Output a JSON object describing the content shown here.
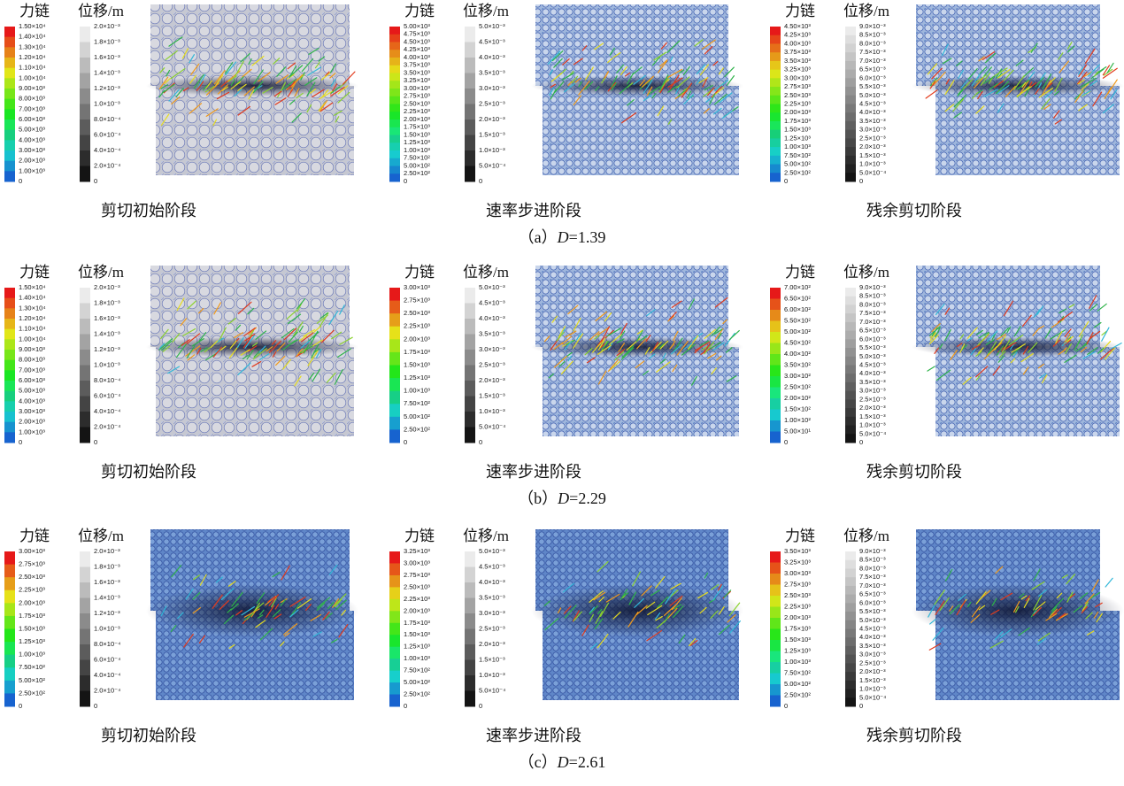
{
  "rows": [
    {
      "caption": {
        "label": "（a）",
        "symbol": "D",
        "value": "=1.39"
      },
      "panels": [
        {
          "stage": "剪切初始阶段",
          "force_title": "力链",
          "disp_title": "位移/m",
          "force_ticks": [
            "1.50×10⁴",
            "1.40×10⁴",
            "1.30×10⁴",
            "1.20×10⁴",
            "1.10×10⁴",
            "1.00×10⁴",
            "9.00×10³",
            "8.00×10³",
            "7.00×10³",
            "6.00×10³",
            "5.00×10³",
            "4.00×10³",
            "3.00×10³",
            "2.00×10³",
            "1.00×10³",
            "0"
          ],
          "disp_ticks": [
            "2.0×10⁻³",
            "1.8×10⁻³",
            "1.6×10⁻³",
            "1.4×10⁻³",
            "1.2×10⁻³",
            "1.0×10⁻³",
            "8.0×10⁻⁴",
            "6.0×10⁻⁴",
            "4.0×10⁻⁴",
            "2.0×10⁻⁴",
            "0"
          ]
        },
        {
          "stage": "速率步进阶段",
          "force_title": "力链",
          "disp_title": "位移/m",
          "force_ticks": [
            "5.00×10³",
            "4.75×10³",
            "4.50×10³",
            "4.25×10³",
            "4.00×10³",
            "3.75×10³",
            "3.50×10³",
            "3.25×10³",
            "3.00×10³",
            "2.75×10³",
            "2.50×10³",
            "2.25×10³",
            "2.00×10³",
            "1.75×10³",
            "1.50×10³",
            "1.25×10³",
            "1.00×10³",
            "7.50×10²",
            "5.00×10²",
            "2.50×10²",
            "0"
          ],
          "disp_ticks": [
            "5.0×10⁻³",
            "4.5×10⁻³",
            "4.0×10⁻³",
            "3.5×10⁻³",
            "3.0×10⁻³",
            "2.5×10⁻³",
            "2.0×10⁻³",
            "1.5×10⁻³",
            "1.0×10⁻³",
            "5.0×10⁻⁴",
            "0"
          ]
        },
        {
          "stage": "残余剪切阶段",
          "force_title": "力链",
          "disp_title": "位移/m",
          "force_ticks": [
            "4.50×10³",
            "4.25×10³",
            "4.00×10³",
            "3.75×10³",
            "3.50×10³",
            "3.25×10³",
            "3.00×10³",
            "2.75×10³",
            "2.50×10³",
            "2.25×10³",
            "2.00×10³",
            "1.75×10³",
            "1.50×10³",
            "1.25×10³",
            "1.00×10³",
            "7.50×10²",
            "5.00×10²",
            "2.50×10²",
            "0"
          ],
          "disp_ticks": [
            "9.0×10⁻³",
            "8.5×10⁻³",
            "8.0×10⁻³",
            "7.5×10⁻³",
            "7.0×10⁻³",
            "6.5×10⁻³",
            "6.0×10⁻³",
            "5.5×10⁻³",
            "5.0×10⁻³",
            "4.5×10⁻³",
            "4.0×10⁻³",
            "3.5×10⁻³",
            "3.0×10⁻³",
            "2.5×10⁻³",
            "2.0×10⁻³",
            "1.5×10⁻³",
            "1.0×10⁻³",
            "5.0×10⁻⁴",
            "0"
          ]
        }
      ]
    },
    {
      "caption": {
        "label": "（b）",
        "symbol": "D",
        "value": "=2.29"
      },
      "panels": [
        {
          "stage": "剪切初始阶段",
          "force_title": "力链",
          "disp_title": "位移/m",
          "force_ticks": [
            "1.50×10⁴",
            "1.40×10⁴",
            "1.30×10⁴",
            "1.20×10⁴",
            "1.10×10⁴",
            "1.00×10⁴",
            "9.00×10³",
            "8.00×10³",
            "7.00×10³",
            "6.00×10³",
            "5.00×10³",
            "4.00×10³",
            "3.00×10³",
            "2.00×10³",
            "1.00×10³",
            "0"
          ],
          "disp_ticks": [
            "2.0×10⁻³",
            "1.8×10⁻³",
            "1.6×10⁻³",
            "1.4×10⁻³",
            "1.2×10⁻³",
            "1.0×10⁻³",
            "8.0×10⁻⁴",
            "6.0×10⁻⁴",
            "4.0×10⁻⁴",
            "2.0×10⁻⁴",
            "0"
          ]
        },
        {
          "stage": "速率步进阶段",
          "force_title": "力链",
          "disp_title": "位移/m",
          "force_ticks": [
            "3.00×10³",
            "2.75×10³",
            "2.50×10³",
            "2.25×10³",
            "2.00×10³",
            "1.75×10³",
            "1.50×10³",
            "1.25×10³",
            "1.00×10³",
            "7.50×10²",
            "5.00×10²",
            "2.50×10²",
            "0"
          ],
          "disp_ticks": [
            "5.0×10⁻³",
            "4.5×10⁻³",
            "4.0×10⁻³",
            "3.5×10⁻³",
            "3.0×10⁻³",
            "2.5×10⁻³",
            "2.0×10⁻³",
            "1.5×10⁻³",
            "1.0×10⁻³",
            "5.0×10⁻⁴",
            "0"
          ]
        },
        {
          "stage": "残余剪切阶段",
          "force_title": "力链",
          "disp_title": "位移/m",
          "force_ticks": [
            "7.00×10²",
            "6.50×10²",
            "6.00×10²",
            "5.50×10²",
            "5.00×10²",
            "4.50×10²",
            "4.00×10²",
            "3.50×10²",
            "3.00×10²",
            "2.50×10²",
            "2.00×10²",
            "1.50×10²",
            "1.00×10²",
            "5.00×10¹",
            "0"
          ],
          "disp_ticks": [
            "9.0×10⁻³",
            "8.5×10⁻³",
            "8.0×10⁻³",
            "7.5×10⁻³",
            "7.0×10⁻³",
            "6.5×10⁻³",
            "6.0×10⁻³",
            "5.5×10⁻³",
            "5.0×10⁻³",
            "4.5×10⁻³",
            "4.0×10⁻³",
            "3.5×10⁻³",
            "3.0×10⁻³",
            "2.5×10⁻³",
            "2.0×10⁻³",
            "1.5×10⁻³",
            "1.0×10⁻³",
            "5.0×10⁻⁴",
            "0"
          ]
        }
      ]
    },
    {
      "caption": {
        "label": "（c）",
        "symbol": "D",
        "value": "=2.61"
      },
      "panels": [
        {
          "stage": "剪切初始阶段",
          "force_title": "力链",
          "disp_title": "位移/m",
          "force_ticks": [
            "3.00×10³",
            "2.75×10³",
            "2.50×10³",
            "2.25×10³",
            "2.00×10³",
            "1.75×10³",
            "1.50×10³",
            "1.25×10³",
            "1.00×10³",
            "7.50×10²",
            "5.00×10²",
            "2.50×10²",
            "0"
          ],
          "disp_ticks": [
            "2.0×10⁻³",
            "1.8×10⁻³",
            "1.6×10⁻³",
            "1.4×10⁻³",
            "1.2×10⁻³",
            "1.0×10⁻³",
            "8.0×10⁻⁴",
            "6.0×10⁻⁴",
            "4.0×10⁻⁴",
            "2.0×10⁻⁴",
            "0"
          ]
        },
        {
          "stage": "速率步进阶段",
          "force_title": "力链",
          "disp_title": "位移/m",
          "force_ticks": [
            "3.25×10³",
            "3.00×10³",
            "2.75×10³",
            "2.50×10³",
            "2.25×10³",
            "2.00×10³",
            "1.75×10³",
            "1.50×10³",
            "1.25×10³",
            "1.00×10³",
            "7.50×10²",
            "5.00×10²",
            "2.50×10²",
            "0"
          ],
          "disp_ticks": [
            "5.0×10⁻³",
            "4.5×10⁻³",
            "4.0×10⁻³",
            "3.5×10⁻³",
            "3.0×10⁻³",
            "2.5×10⁻³",
            "2.0×10⁻³",
            "1.5×10⁻³",
            "1.0×10⁻³",
            "5.0×10⁻⁴",
            "0"
          ]
        },
        {
          "stage": "残余剪切阶段",
          "force_title": "力链",
          "disp_title": "位移/m",
          "force_ticks": [
            "3.50×10³",
            "3.25×10³",
            "3.00×10³",
            "2.75×10³",
            "2.50×10³",
            "2.25×10³",
            "2.00×10³",
            "1.75×10³",
            "1.50×10³",
            "1.25×10³",
            "1.00×10³",
            "7.50×10²",
            "5.00×10²",
            "2.50×10²",
            "0"
          ],
          "disp_ticks": [
            "9.0×10⁻³",
            "8.5×10⁻³",
            "8.0×10⁻³",
            "7.5×10⁻³",
            "7.0×10⁻³",
            "6.5×10⁻³",
            "6.0×10⁻³",
            "5.5×10⁻³",
            "5.0×10⁻³",
            "4.5×10⁻³",
            "4.0×10⁻³",
            "3.5×10⁻³",
            "3.0×10⁻³",
            "2.5×10⁻³",
            "2.0×10⁻³",
            "1.5×10⁻³",
            "1.0×10⁻³",
            "5.0×10⁻⁴",
            "0"
          ]
        }
      ]
    }
  ]
}
